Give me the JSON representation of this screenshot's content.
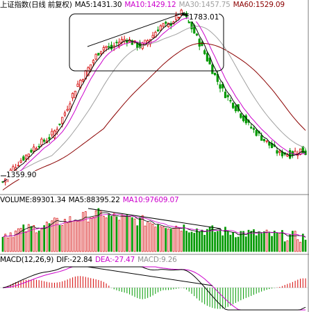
{
  "colors": {
    "up": "#d40000",
    "down": "#009900",
    "ma5": "#000000",
    "ma10": "#cc00cc",
    "ma30": "#a0a0a0",
    "ma60": "#8b0000",
    "dif": "#000000",
    "dea": "#cc00cc",
    "macd_text": "#909090",
    "panel_border": "#7f7f7f"
  },
  "price_panel": {
    "title": "上证指数(日线 前复权)",
    "ma5": "MA5:1431.30",
    "ma10": "MA10:1429.12",
    "ma30": "MA30:1457.75",
    "ma60": "MA60:1529.09",
    "high_label": "1783.01",
    "low_label": "1359.90"
  },
  "volume_panel": {
    "volume": "VOLUME:89301.34",
    "ma5": "MA5:88395.22",
    "ma10": "MA10:97609.07"
  },
  "macd_panel": {
    "title": "MACD(12,26,9)",
    "dif": "DIF:-22.84",
    "dea": "DEA:-27.47",
    "macd": "MACD:9.26"
  },
  "chart_data": {
    "type": "candlestick",
    "y_high": 1783.01,
    "y_low": 1359.9,
    "close_path": [
      1360,
      1378,
      1395,
      1408,
      1420,
      1432,
      1445,
      1455,
      1462,
      1470,
      1485,
      1505,
      1530,
      1560,
      1590,
      1612,
      1630,
      1650,
      1672,
      1690,
      1700,
      1690,
      1705,
      1712,
      1718,
      1710,
      1702,
      1698,
      1710,
      1722,
      1740,
      1752,
      1748,
      1760,
      1772,
      1783,
      1762,
      1740,
      1715,
      1690,
      1662,
      1635,
      1608,
      1585,
      1568,
      1552,
      1535,
      1518,
      1500,
      1488,
      1476,
      1464,
      1452,
      1440,
      1430,
      1432,
      1428,
      1435,
      1440,
      1433
    ],
    "volume_level": 89301.34,
    "annotations": [
      "consolidation-box",
      "price-trendline",
      "volume-divergence-line",
      "macd-divergence-line"
    ]
  }
}
